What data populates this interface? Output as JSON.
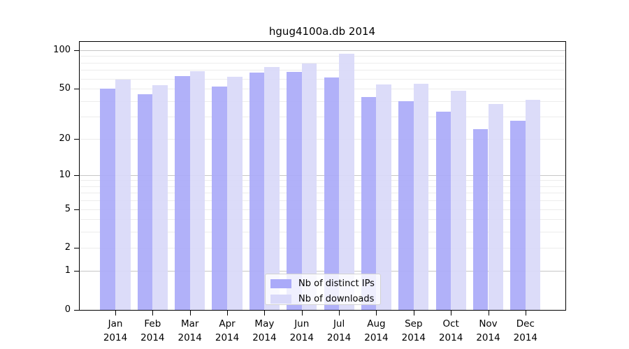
{
  "chart_data": {
    "type": "bar",
    "title": "hgug4100a.db 2014",
    "x_categories": [
      "Jan",
      "Feb",
      "Mar",
      "Apr",
      "May",
      "Jun",
      "Jul",
      "Aug",
      "Sep",
      "Oct",
      "Nov",
      "Dec"
    ],
    "x_year_label": "2014",
    "y_scale": "log1p",
    "ylim": [
      0,
      100
    ],
    "y_ticks": [
      0,
      1,
      2,
      5,
      10,
      20,
      50,
      100
    ],
    "y_major_gridlines": [
      1,
      10,
      100
    ],
    "y_minor_gridlines": [
      2,
      3,
      4,
      5,
      6,
      7,
      8,
      9,
      20,
      30,
      40,
      50,
      60,
      70,
      80,
      90
    ],
    "grid": true,
    "legend_position": "bottom-center",
    "series": [
      {
        "name": "Nb of distinct IPs",
        "color": "#aaaaf9",
        "values": [
          50,
          45,
          63,
          52,
          67,
          68,
          61,
          43,
          40,
          33,
          24,
          28
        ]
      },
      {
        "name": "Nb of downloads",
        "color": "#d9d9f9",
        "values": [
          59,
          53,
          69,
          62,
          74,
          79,
          94,
          54,
          55,
          48,
          38,
          41
        ]
      }
    ],
    "colors": {
      "axis": "#000000",
      "grid_minor": "#ececec",
      "grid_major": "#c6c6c6",
      "background": "#ffffff"
    }
  }
}
